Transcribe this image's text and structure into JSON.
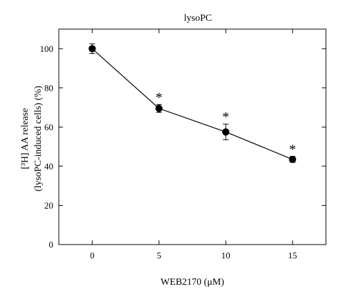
{
  "chart_data": {
    "type": "line",
    "title": "lysoPC",
    "xlabel": "WEB2170 (μM)",
    "ylabel_lines": [
      "[³H] AA release",
      "(lysoPC-induced cells) (%)"
    ],
    "xlim": [
      -2.5,
      17.5
    ],
    "ylim": [
      0,
      110
    ],
    "xticks": [
      0,
      5,
      10,
      15
    ],
    "yticks": [
      0,
      20,
      40,
      60,
      80,
      100
    ],
    "grid": false,
    "series": [
      {
        "x": [
          0,
          5,
          10,
          15
        ],
        "y": [
          100,
          69.5,
          57.5,
          43.5
        ],
        "error": [
          2.5,
          2,
          4,
          1.5
        ],
        "significance": [
          "",
          "*",
          "*",
          "*"
        ]
      }
    ]
  }
}
